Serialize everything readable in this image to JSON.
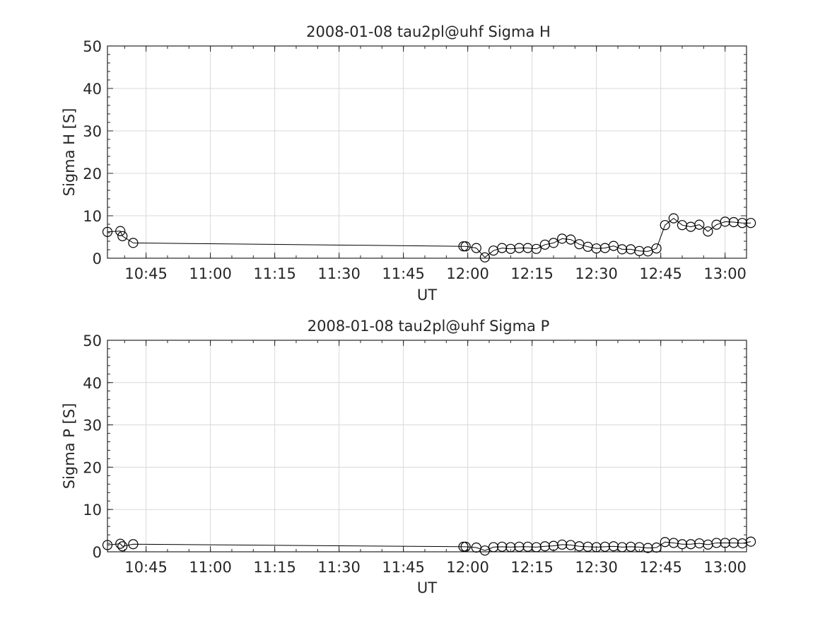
{
  "chart_data": [
    {
      "type": "line",
      "title": "2008-01-08  tau2pl@uhf Sigma H",
      "xlabel": "UT",
      "ylabel": "Sigma H [S]",
      "xlim": [
        "10:36",
        "13:05"
      ],
      "ylim": [
        0,
        50
      ],
      "yticks": [
        0,
        10,
        20,
        30,
        40,
        50
      ],
      "xtick_labels": [
        "10:45",
        "11:00",
        "11:15",
        "11:30",
        "11:45",
        "12:00",
        "12:15",
        "12:30",
        "12:45",
        "13:00"
      ],
      "grid": true,
      "series": [
        {
          "marker": "circle",
          "x": [
            "10:36",
            "10:39",
            "10:39.5",
            "10:42",
            "11:59",
            "11:59.5",
            "12:02",
            "12:04",
            "12:06",
            "12:08",
            "12:10",
            "12:12",
            "12:14",
            "12:16",
            "12:18",
            "12:20",
            "12:22",
            "12:24",
            "12:26",
            "12:28",
            "12:30",
            "12:32",
            "12:34",
            "12:36",
            "12:38",
            "12:40",
            "12:42",
            "12:44",
            "12:46",
            "12:48",
            "12:50",
            "12:52",
            "12:54",
            "12:56",
            "12:58",
            "13:00",
            "13:02",
            "13:04",
            "13:06"
          ],
          "y": [
            6.2,
            6.4,
            5.2,
            3.6,
            2.8,
            2.8,
            2.4,
            0.2,
            1.8,
            2.4,
            2.2,
            2.4,
            2.4,
            2.2,
            3.2,
            3.6,
            4.6,
            4.4,
            3.3,
            2.7,
            2.3,
            2.4,
            2.9,
            2.1,
            2.1,
            1.7,
            1.6,
            2.3,
            7.8,
            9.4,
            7.8,
            7.4,
            7.9,
            6.3,
            7.9,
            8.6,
            8.5,
            8.3,
            8.3
          ]
        }
      ]
    },
    {
      "type": "line",
      "title": "2008-01-08  tau2pl@uhf Sigma P",
      "xlabel": "UT",
      "ylabel": "Sigma P [S]",
      "xlim": [
        "10:36",
        "13:05"
      ],
      "ylim": [
        0,
        50
      ],
      "yticks": [
        0,
        10,
        20,
        30,
        40,
        50
      ],
      "xtick_labels": [
        "10:45",
        "11:00",
        "11:15",
        "11:30",
        "11:45",
        "12:00",
        "12:15",
        "12:30",
        "12:45",
        "13:00"
      ],
      "grid": true,
      "series": [
        {
          "marker": "circle",
          "x": [
            "10:36",
            "10:39",
            "10:39.5",
            "10:42",
            "11:59",
            "11:59.5",
            "12:02",
            "12:04",
            "12:06",
            "12:08",
            "12:10",
            "12:12",
            "12:14",
            "12:16",
            "12:18",
            "12:20",
            "12:22",
            "12:24",
            "12:26",
            "12:28",
            "12:30",
            "12:32",
            "12:34",
            "12:36",
            "12:38",
            "12:40",
            "12:42",
            "12:44",
            "12:46",
            "12:48",
            "12:50",
            "12:52",
            "12:54",
            "12:56",
            "12:58",
            "13:00",
            "13:02",
            "13:04",
            "13:06"
          ],
          "y": [
            1.6,
            1.9,
            1.3,
            1.8,
            1.2,
            1.2,
            1.0,
            0.3,
            1.1,
            1.2,
            1.1,
            1.2,
            1.2,
            1.1,
            1.3,
            1.4,
            1.7,
            1.6,
            1.3,
            1.2,
            1.1,
            1.2,
            1.3,
            1.1,
            1.2,
            1.1,
            0.9,
            1.0,
            2.3,
            2.1,
            1.8,
            1.8,
            2.0,
            1.7,
            2.1,
            2.1,
            2.1,
            2.0,
            2.4
          ]
        }
      ]
    }
  ]
}
